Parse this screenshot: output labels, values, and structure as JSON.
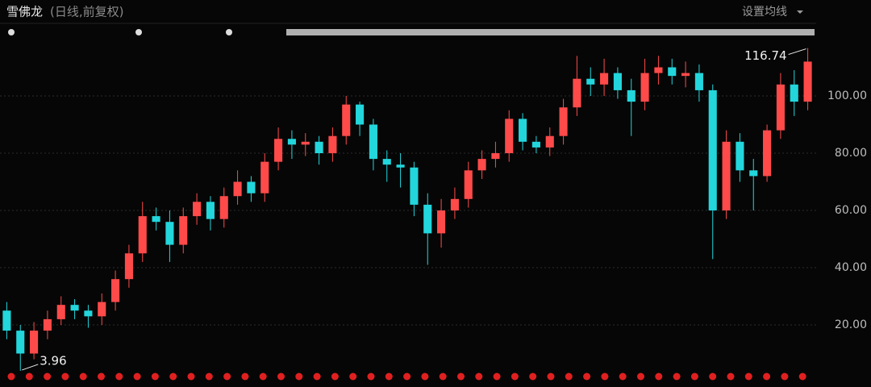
{
  "chart_data": {
    "type": "candlestick",
    "title": "雪佛龙",
    "subtitle": "(日线,前复权)",
    "button": "设置均线",
    "up_color": "#ff4a4a",
    "down_color": "#22d6dc",
    "open": [
      25,
      18,
      10,
      18,
      22,
      27,
      25,
      23,
      28,
      36,
      45,
      58,
      56,
      48,
      58,
      63,
      57,
      65,
      70,
      66,
      77,
      85,
      83,
      84,
      80,
      86,
      97,
      90,
      78,
      76,
      75,
      62,
      52,
      60,
      64,
      74,
      78,
      80,
      92,
      84,
      82,
      86,
      96,
      106,
      104,
      108,
      102,
      98,
      108,
      110,
      107,
      108,
      102,
      60,
      84,
      74,
      72,
      88,
      104,
      98
    ],
    "close": [
      18,
      10,
      18,
      22,
      27,
      25,
      23,
      28,
      36,
      45,
      58,
      56,
      48,
      58,
      63,
      57,
      65,
      70,
      66,
      77,
      85,
      83,
      84,
      80,
      86,
      97,
      90,
      78,
      76,
      75,
      62,
      52,
      60,
      64,
      74,
      78,
      80,
      92,
      84,
      82,
      86,
      96,
      106,
      104,
      108,
      102,
      98,
      108,
      110,
      107,
      108,
      102,
      60,
      84,
      74,
      72,
      88,
      104,
      98,
      112
    ],
    "high": [
      28,
      20,
      21,
      25,
      30,
      29,
      27,
      31,
      39,
      48,
      63,
      61,
      60,
      61,
      66,
      65,
      68,
      74,
      72,
      80,
      89,
      88,
      87,
      86,
      89,
      100,
      98,
      92,
      81,
      80,
      77,
      66,
      64,
      68,
      77,
      81,
      84,
      95,
      94,
      86,
      89,
      99,
      114,
      110,
      113,
      110,
      106,
      113,
      114,
      113,
      112,
      111,
      104,
      88,
      87,
      78,
      90,
      108,
      109,
      116.74
    ],
    "low": [
      15,
      3.96,
      8,
      15,
      20,
      22,
      19,
      20,
      25,
      33,
      42,
      53,
      42,
      45,
      55,
      53,
      54,
      62,
      63,
      63,
      74,
      78,
      79,
      76,
      77,
      83,
      86,
      74,
      70,
      68,
      58,
      41,
      47,
      57,
      61,
      71,
      75,
      77,
      81,
      80,
      79,
      83,
      93,
      100,
      100,
      99,
      86,
      95,
      104,
      104,
      103,
      98,
      43,
      57,
      70,
      60,
      70,
      85,
      93,
      95
    ],
    "ylim": [
      0,
      125
    ],
    "yticks": [
      {
        "value": 20,
        "label": "20.00"
      },
      {
        "value": 40,
        "label": "40.00"
      },
      {
        "value": 60,
        "label": "60.00"
      },
      {
        "value": 80,
        "label": "80.00"
      },
      {
        "value": 100,
        "label": "100.00"
      }
    ],
    "grid": true
  }
}
